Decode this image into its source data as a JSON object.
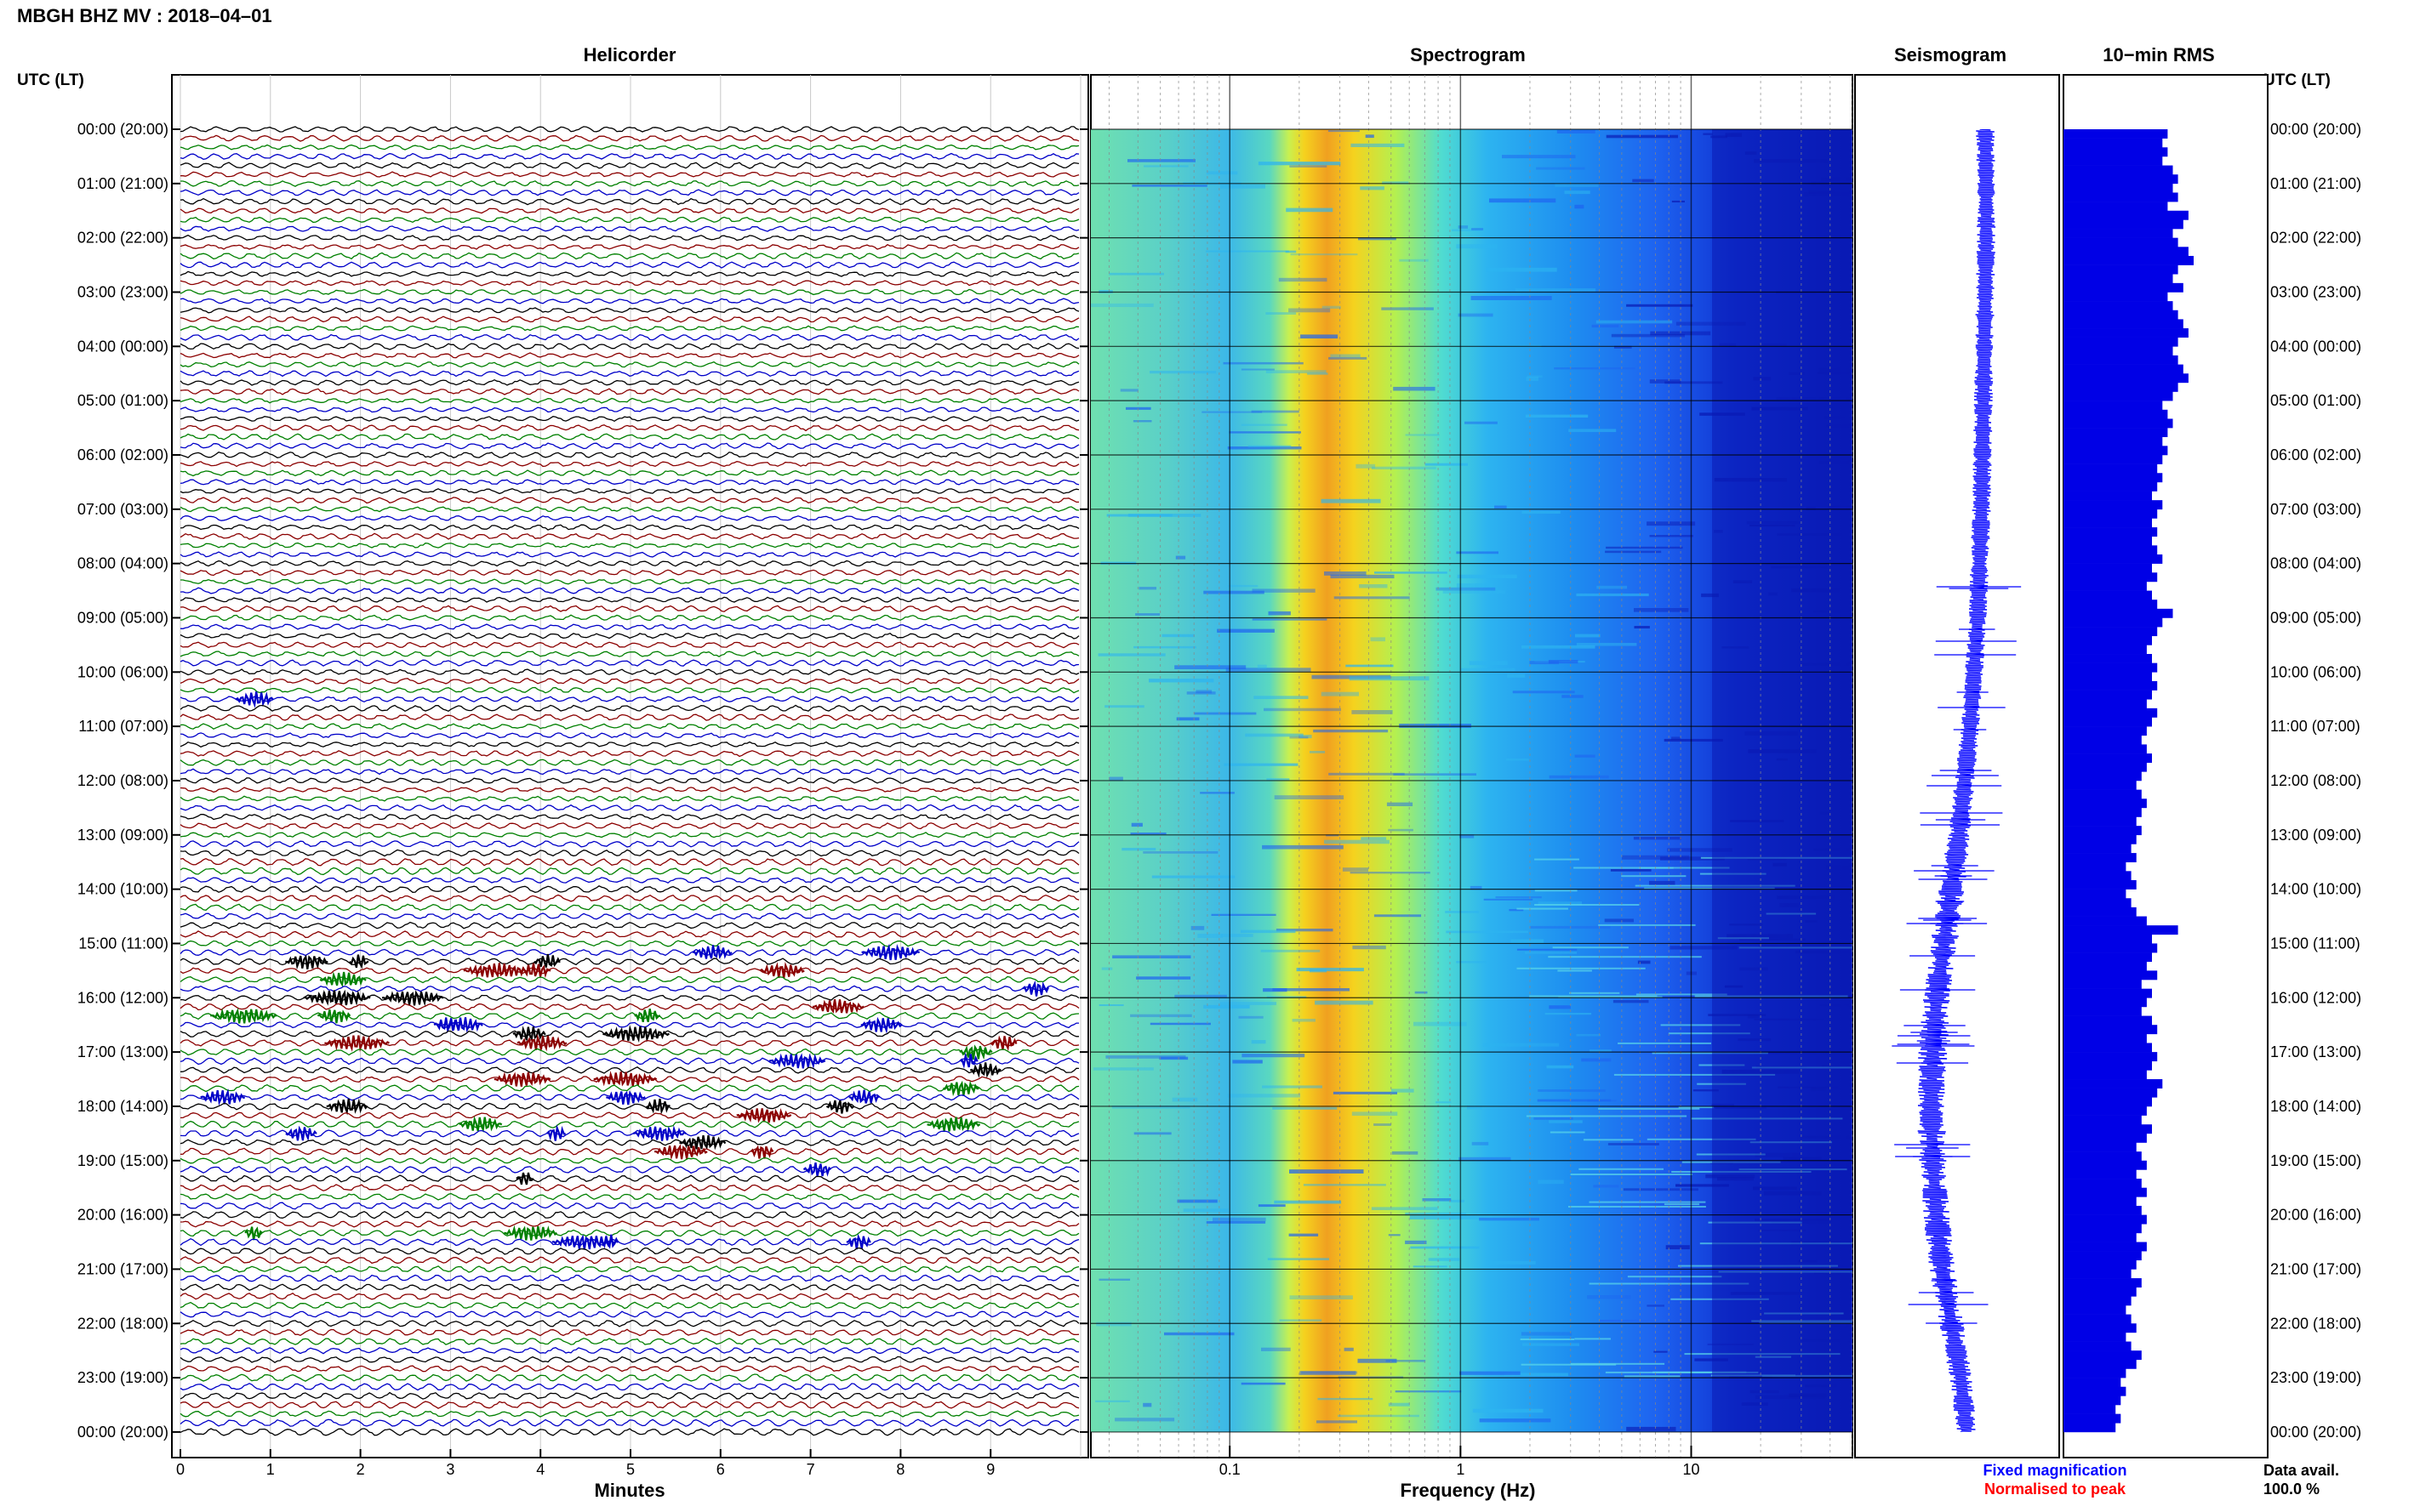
{
  "header": {
    "title": "MBGH BHZ MV : 2018–04–01"
  },
  "panels": {
    "helicorder": "Helicorder",
    "spectrogram": "Spectrogram",
    "seismogram": "Seismogram",
    "rms": "10−min RMS"
  },
  "time_axis": {
    "label_left": "UTC (LT)",
    "label_right": "UTC (LT)",
    "rows": [
      "00:00 (20:00)",
      "01:00 (21:00)",
      "02:00 (22:00)",
      "03:00 (23:00)",
      "04:00 (00:00)",
      "05:00 (01:00)",
      "06:00 (02:00)",
      "07:00 (03:00)",
      "08:00 (04:00)",
      "09:00 (05:00)",
      "10:00 (06:00)",
      "11:00 (07:00)",
      "12:00 (08:00)",
      "13:00 (09:00)",
      "14:00 (10:00)",
      "15:00 (11:00)",
      "16:00 (12:00)",
      "17:00 (13:00)",
      "18:00 (14:00)",
      "19:00 (15:00)",
      "20:00 (16:00)",
      "21:00 (17:00)",
      "22:00 (18:00)",
      "23:00 (19:00)",
      "00:00 (20:00)"
    ]
  },
  "footer": {
    "minutes_label": "Minutes",
    "freq_label": "Frequency (Hz)",
    "legend_fixed": "Fixed magnification",
    "legend_norm": "Normalised to peak",
    "data_avail_label": "Data avail.",
    "data_avail_value": "100.0 %"
  },
  "chart_data": [
    {
      "type": "line",
      "panel": "helicorder",
      "xlabel": "Minutes",
      "x_ticks": [
        0,
        1,
        2,
        3,
        4,
        5,
        6,
        7,
        8,
        9
      ],
      "xlim": [
        0,
        10
      ],
      "row_count": 144,
      "row_minutes": 10,
      "trace_colors": [
        "#000000",
        "#8b0000",
        "#008000",
        "#0000c8"
      ],
      "event_rows": [
        63,
        91,
        92,
        93,
        94,
        95,
        96,
        97,
        98,
        99,
        100,
        101,
        102,
        103,
        104,
        105,
        106,
        107,
        108,
        109,
        110,
        111,
        112,
        113,
        115,
        116,
        122,
        123
      ]
    },
    {
      "type": "heatmap",
      "panel": "spectrogram",
      "xlabel": "Frequency (Hz)",
      "scale": "log",
      "xlim": [
        0.025,
        50
      ],
      "x_ticks": [
        0.1,
        1,
        10
      ],
      "x_tick_labels": [
        "0.1",
        "1",
        "10"
      ],
      "colormap": [
        "#0a1ab4",
        "#1e64f0",
        "#2db4f0",
        "#3ce6c8",
        "#b4f050",
        "#f5d21e",
        "#f08c14"
      ],
      "peak_frequency_hz": 0.28
    },
    {
      "type": "line",
      "panel": "seismogram",
      "series": [
        {
          "name": "Fixed magnification",
          "color": "#0000ff"
        },
        {
          "name": "Normalised to peak",
          "color": "#ff0000"
        }
      ],
      "x": [
        0,
        1,
        2,
        3,
        4,
        5,
        6,
        7,
        8,
        9,
        10,
        11,
        12,
        13,
        14,
        15,
        16,
        17,
        18,
        19,
        20,
        21,
        22,
        23,
        24
      ],
      "center_offset": [
        0.3,
        0.31,
        0.31,
        0.3,
        0.29,
        0.28,
        0.27,
        0.26,
        0.24,
        0.22,
        0.18,
        0.14,
        0.08,
        0.02,
        -0.06,
        -0.14,
        -0.22,
        -0.26,
        -0.28,
        -0.26,
        -0.22,
        -0.16,
        -0.06,
        0.04,
        0.1
      ],
      "amplitude": [
        0.5,
        0.5,
        0.5,
        0.5,
        0.5,
        0.5,
        0.5,
        0.5,
        0.5,
        0.5,
        0.5,
        0.5,
        0.6,
        0.7,
        1.0,
        1.0,
        1.1,
        1.1,
        1.1,
        1.0,
        1.0,
        0.9,
        0.9,
        0.7,
        0.6
      ]
    },
    {
      "type": "bar",
      "panel": "rms",
      "bins_per_hour": 6,
      "hours": 24,
      "values": [
        1.0,
        0.95,
        1.0,
        0.95,
        1.05,
        1.1,
        1.05,
        1.1,
        1.0,
        1.2,
        1.15,
        1.05,
        1.1,
        1.2,
        1.25,
        1.1,
        1.05,
        1.15,
        1.0,
        1.05,
        1.1,
        1.15,
        1.2,
        1.1,
        1.05,
        1.1,
        1.15,
        1.2,
        1.1,
        1.05,
        0.95,
        1.0,
        1.05,
        1.0,
        0.95,
        1.0,
        0.95,
        0.9,
        0.95,
        0.9,
        0.85,
        0.95,
        0.9,
        0.85,
        0.9,
        0.85,
        0.9,
        0.95,
        0.85,
        0.9,
        0.8,
        0.85,
        0.9,
        1.05,
        0.95,
        0.9,
        0.85,
        0.8,
        0.85,
        0.9,
        0.85,
        0.9,
        0.85,
        0.8,
        0.9,
        0.85,
        0.8,
        0.75,
        0.8,
        0.85,
        0.8,
        0.75,
        0.7,
        0.75,
        0.8,
        0.75,
        0.7,
        0.75,
        0.7,
        0.65,
        0.7,
        0.6,
        0.65,
        0.7,
        0.6,
        0.65,
        0.7,
        0.8,
        1.1,
        0.85,
        0.9,
        0.85,
        0.8,
        0.9,
        0.75,
        0.85,
        0.8,
        0.75,
        0.85,
        0.9,
        0.8,
        0.85,
        0.9,
        0.85,
        0.8,
        0.95,
        0.9,
        0.85,
        0.8,
        0.75,
        0.85,
        0.8,
        0.7,
        0.75,
        0.8,
        0.7,
        0.75,
        0.8,
        0.7,
        0.75,
        0.8,
        0.75,
        0.7,
        0.8,
        0.75,
        0.7,
        0.65,
        0.75,
        0.7,
        0.65,
        0.6,
        0.65,
        0.7,
        0.6,
        0.65,
        0.75,
        0.7,
        0.6,
        0.55,
        0.6,
        0.55,
        0.5,
        0.55,
        0.5
      ]
    }
  ]
}
